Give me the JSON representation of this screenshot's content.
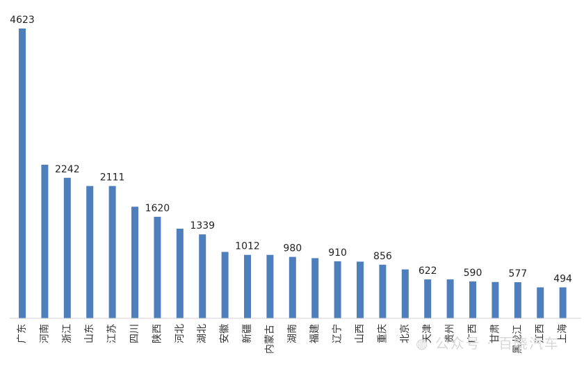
{
  "chart_data": {
    "type": "bar",
    "title": "",
    "xlabel": "",
    "ylabel": "",
    "ylim": [
      0,
      4623
    ],
    "grid": false,
    "categories": [
      "广东",
      "河南",
      "浙江",
      "山东",
      "江苏",
      "四川",
      "陕西",
      "河北",
      "湖北",
      "安徽",
      "新疆",
      "内蒙古",
      "湖南",
      "福建",
      "辽宁",
      "山西",
      "重庆",
      "北京",
      "天津",
      "贵州",
      "广西",
      "甘肃",
      "黑龙江",
      "江西",
      "上海"
    ],
    "values": [
      4623,
      2450,
      2242,
      2111,
      2111,
      1780,
      1620,
      1430,
      1339,
      1060,
      1012,
      1012,
      980,
      960,
      910,
      905,
      856,
      780,
      622,
      622,
      590,
      580,
      577,
      494,
      494
    ],
    "data_labels": {
      "0": "4623",
      "2": "2242",
      "4": "2111",
      "6": "1620",
      "8": "1339",
      "10": "1012",
      "12": "980",
      "14": "910",
      "16": "856",
      "18": "622",
      "20": "590",
      "22": "577",
      "24": "494"
    },
    "colors": {
      "bar": "#4f7ebd"
    }
  },
  "watermark": {
    "text": "公众号 · 百晓汽车",
    "icon": "wechat-icon"
  }
}
